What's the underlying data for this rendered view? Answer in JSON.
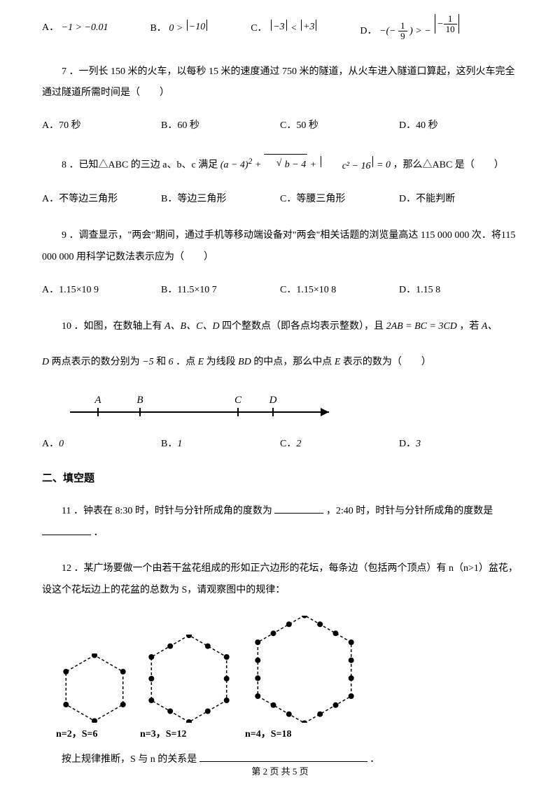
{
  "q6": {
    "optA_label": "A．",
    "optA_text": "−1 > −0.01",
    "optB_label": "B．",
    "optB_text_pre": "0 > ",
    "optB_abs": "−10",
    "optC_label": "C．",
    "optC_abs1": "−3",
    "optC_mid": " < ",
    "optC_abs2": "+3",
    "optD_label": "D．",
    "optD_pre": "−(−",
    "optD_frac1_n": "1",
    "optD_frac1_d": "9",
    "optD_mid": ") > −",
    "optD_frac2_n": "1",
    "optD_frac2_d": "10"
  },
  "q7": {
    "text": "7 ．一列长 150 米的火车，以每秒 15 米的速度通过 750 米的隧道，从火车进入隧道口算起，这列火车完全通过隧道所需时间是（　　）",
    "a": "A．70 秒",
    "b": "B．60 秒",
    "c": "C．50 秒",
    "d": "D．40 秒"
  },
  "q8": {
    "pre": "8 ．已知△ABC 的三边 a、b、c 满足",
    "expr_a": "(a − 4)",
    "expr_pow": "2",
    "expr_plus1": " + ",
    "expr_sqrt": "b − 4",
    "expr_plus2": " + ",
    "expr_abs": "c² − 16",
    "expr_eq": " = 0",
    "post": "，那么△ABC 是（　　）",
    "a": "A．不等边三角形",
    "b": "B．等边三角形",
    "c": "C．等腰三角形",
    "d": "D．不能判断"
  },
  "q9": {
    "text": "9 ．调查显示，\"两会\"期间，通过手机等移动端设备对\"两会\"相关话题的浏览量高达 115 000 000 次．将115 000 000 用科学记数法表示应为（　　）",
    "a": "A．1.15×10 9",
    "b": "B．11.5×10 7",
    "c": "C．1.15×10 8",
    "d": "D．1.15 8"
  },
  "q10": {
    "pre": "10 ．如图，在数轴上有",
    "lets1": "A、B、C、D",
    "mid1": "四个整数点（即各点均表示整数），且",
    "eq": "2AB = BC = 3CD",
    "mid2": "，若",
    "lets2": "A、",
    "line2a": "D",
    "line2b": "两点表示的数分别为",
    "neg5": "−5",
    "line2c": "和",
    "six": "6",
    "line2d": "．点",
    "E1": "E",
    "line2e": "为线段",
    "BD": "BD",
    "line2f": "的中点，那么中点",
    "E2": "E",
    "line2g": "表示的数为（　　）",
    "axis": {
      "A": "A",
      "B": "B",
      "C": "C",
      "D": "D"
    },
    "a": "A．",
    "av": "0",
    "b": "B．",
    "bv": "1",
    "c": "C．",
    "cv": "2",
    "d": "D．",
    "dv": "3"
  },
  "section2": "二、填空题",
  "q11": {
    "p1": "11 ．钟表在 8:30 时，时针与分针所成角的度数为",
    "p2": "，2:40 时，时针与分针所成角的度数是",
    "p3": "．"
  },
  "q12": {
    "text": "12 ．某广场要做一个由若干盆花组成的形如正六边形的花坛，每条边（包括两个顶点）有 n（n>1）盆花，设这个花坛边上的花盆的总数为 S，请观察图中的规律：",
    "hex": [
      {
        "n": 2,
        "s": 6,
        "size": 110,
        "dots_per_side": 2,
        "caption": "n=2，S=6"
      },
      {
        "n": 3,
        "s": 12,
        "size": 140,
        "dots_per_side": 3,
        "caption": "n=3，S=12"
      },
      {
        "n": 4,
        "s": 18,
        "size": 170,
        "dots_per_side": 4,
        "caption": "n=4，S=18"
      }
    ],
    "conclusion_pre": "按上规律推断，S 与 n 的关系是",
    "conclusion_post": "．"
  },
  "footer": "第 2 页 共 5 页",
  "colors": {
    "text": "#000000",
    "bg": "#ffffff",
    "stroke": "#000000"
  }
}
